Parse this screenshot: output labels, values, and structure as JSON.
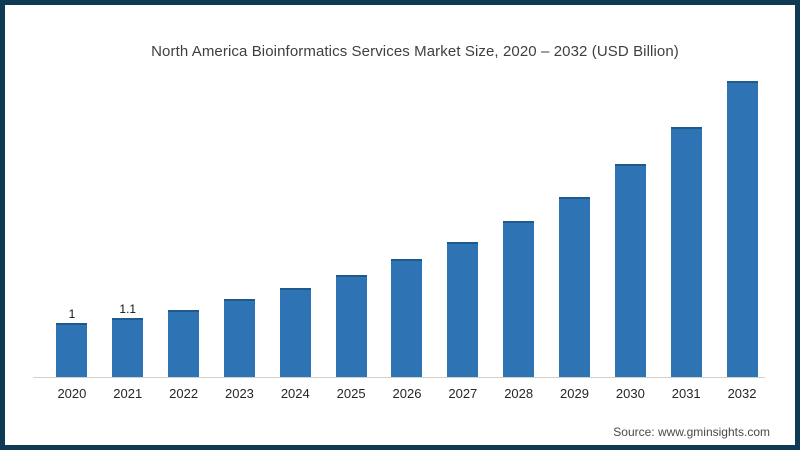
{
  "page": {
    "frame_border_color": "#0e3a54",
    "background_color": "#ffffff"
  },
  "chart_data": {
    "type": "bar",
    "title": "North America Bioinformatics Services Market Size, 2020 – 2032 (USD Billion)",
    "xlabel": "",
    "ylabel": "",
    "categories": [
      "2020",
      "2021",
      "2022",
      "2023",
      "2024",
      "2025",
      "2026",
      "2027",
      "2028",
      "2029",
      "2030",
      "2031",
      "2032"
    ],
    "values": [
      1.0,
      1.1,
      1.25,
      1.45,
      1.65,
      1.9,
      2.2,
      2.5,
      2.9,
      3.35,
      3.95,
      4.65,
      5.5
    ],
    "bar_labels": [
      "1",
      "1.1",
      "",
      "",
      "",
      "",
      "",
      "",
      "",
      "",
      "",
      "",
      ""
    ],
    "ylim": [
      0,
      5.6
    ],
    "grid": false,
    "legend": false,
    "y_axis_visible": false,
    "bar_color": "#2e74b5",
    "bar_top_edge_color": "#1f5a8c",
    "axis_line_color": "#d0d0d0"
  },
  "source": {
    "label": "Source: www.gminsights.com"
  }
}
